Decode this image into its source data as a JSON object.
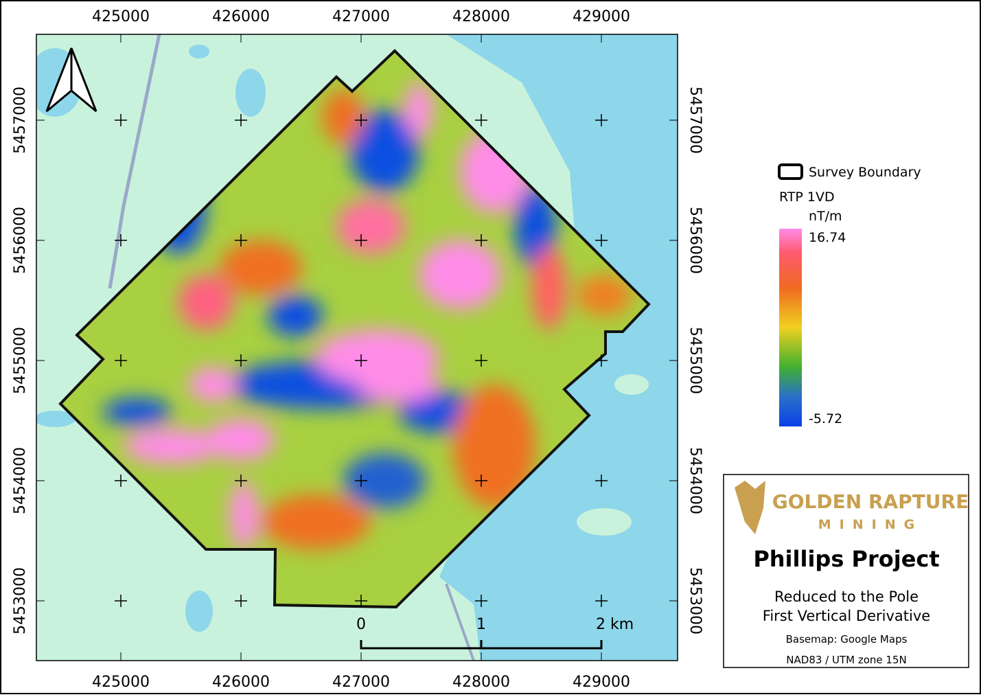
{
  "map": {
    "eastings": [
      425000,
      426000,
      427000,
      428000,
      429000
    ],
    "northings": [
      5457000,
      5456000,
      5455000,
      5454000,
      5453000
    ],
    "legend": {
      "boundary": "Survey Boundary",
      "layer": "RTP 1VD",
      "unit": "nT/m",
      "max": 16.74,
      "min": -5.72
    },
    "logo": {
      "name": "GOLDEN RAPTURE",
      "sub": "MINING"
    },
    "title": "Phillips Project",
    "subtitle": [
      "Reduced to the Pole",
      "First Vertical Derivative"
    ],
    "basemap": "Basemap: Google Maps",
    "crs": "NAD83 / UTM zone 15N",
    "scale_bar": [
      "0",
      "1",
      "2 km"
    ]
  }
}
